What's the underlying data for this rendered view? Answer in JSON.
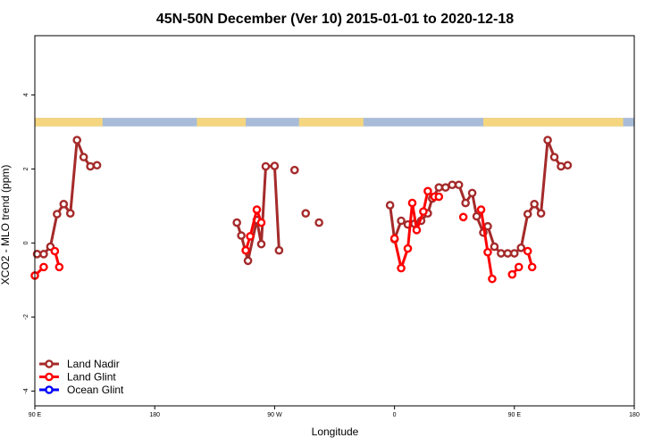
{
  "chart_data": {
    "type": "line",
    "title": "45N-50N December (Ver 10)   2015-01-01 to 2020-12-18",
    "xlabel": "Longitude",
    "ylabel": "XCO2 - MLO trend (ppm)",
    "xlim": [
      -90,
      180
    ],
    "ylim": [
      -4.4,
      5.6
    ],
    "x_ticks": [
      {
        "value": -90,
        "label": "90 E"
      },
      {
        "value": -36,
        "label": "180"
      },
      {
        "value": 18,
        "label": "90 W"
      },
      {
        "value": 72,
        "label": "0"
      },
      {
        "value": 126,
        "label": "90 E"
      },
      {
        "value": 180,
        "label": "180"
      }
    ],
    "y_ticks": [
      {
        "value": -4,
        "label": "-4"
      },
      {
        "value": -2,
        "label": "-2"
      },
      {
        "value": 0,
        "label": "0"
      },
      {
        "value": 2,
        "label": "2"
      },
      {
        "value": 4,
        "label": "4"
      }
    ],
    "grid": false,
    "legend_position": "bottom-left",
    "land_band": {
      "y_range": [
        3.15,
        3.38
      ],
      "land_color": "#f5d67f",
      "ocean_color": "#a8bcd8",
      "land_segments": [
        [
          -90,
          -59.5
        ],
        [
          -17,
          5
        ],
        [
          29,
          58
        ],
        [
          112,
          175
        ]
      ]
    },
    "series": [
      {
        "name": "Land Nadir",
        "color": "#a52a2a",
        "segments": [
          [
            [
              -89,
              -0.3
            ],
            [
              -86,
              -0.3
            ],
            [
              -83,
              -0.1
            ],
            [
              -80,
              0.78
            ],
            [
              -77,
              1.05
            ],
            [
              -74,
              0.8
            ],
            [
              -71,
              2.78
            ],
            [
              -68,
              2.32
            ],
            [
              -65,
              2.07
            ],
            [
              -62,
              2.1
            ]
          ],
          [
            [
              1,
              0.55
            ],
            [
              3,
              0.2
            ],
            [
              6,
              -0.48
            ],
            [
              10,
              0.62
            ],
            [
              12,
              -0.03
            ],
            [
              14,
              2.07
            ],
            [
              18,
              2.08
            ],
            [
              20,
              -0.2
            ]
          ],
          [
            [
              27,
              1.97
            ]
          ],
          [
            [
              32,
              0.8
            ]
          ],
          [
            [
              38,
              0.55
            ]
          ],
          [
            [
              70,
              1.02
            ],
            [
              72,
              0.1
            ],
            [
              75,
              0.6
            ],
            [
              78,
              0.5
            ],
            [
              81,
              0.52
            ],
            [
              84,
              0.6
            ],
            [
              87,
              0.8
            ],
            [
              89,
              1.2
            ],
            [
              92,
              1.5
            ],
            [
              95,
              1.5
            ],
            [
              98,
              1.57
            ],
            [
              101,
              1.57
            ],
            [
              104,
              1.08
            ],
            [
              107,
              1.35
            ],
            [
              109,
              0.72
            ],
            [
              112,
              0.28
            ],
            [
              114,
              0.45
            ],
            [
              117,
              -0.1
            ],
            [
              120,
              -0.28
            ],
            [
              123,
              -0.28
            ],
            [
              126,
              -0.28
            ],
            [
              129,
              -0.13
            ],
            [
              132,
              0.78
            ],
            [
              135,
              1.05
            ],
            [
              138,
              0.8
            ],
            [
              141,
              2.78
            ],
            [
              144,
              2.32
            ],
            [
              147,
              2.07
            ],
            [
              150,
              2.1
            ]
          ]
        ]
      },
      {
        "name": "Land Glint",
        "color": "#ff0000",
        "segments": [
          [
            [
              -90,
              -0.88
            ],
            [
              -86,
              -0.65
            ]
          ],
          [
            [
              -81,
              -0.22
            ],
            [
              -79,
              -0.65
            ]
          ],
          [
            [
              5,
              -0.2
            ],
            [
              7,
              0.18
            ],
            [
              10,
              0.9
            ],
            [
              12,
              0.55
            ]
          ],
          [
            [
              72,
              0.12
            ],
            [
              75,
              -0.68
            ],
            [
              78,
              -0.15
            ],
            [
              80,
              1.08
            ],
            [
              82,
              0.35
            ],
            [
              85,
              0.85
            ],
            [
              87,
              1.4
            ],
            [
              90,
              1.25
            ],
            [
              92,
              1.25
            ]
          ],
          [
            [
              103,
              0.7
            ]
          ],
          [
            [
              111,
              0.9
            ],
            [
              114,
              -0.25
            ],
            [
              116,
              -0.97
            ]
          ],
          [
            [
              125,
              -0.85
            ],
            [
              128,
              -0.65
            ]
          ],
          [
            [
              132,
              -0.22
            ],
            [
              134,
              -0.65
            ]
          ]
        ]
      },
      {
        "name": "Ocean Glint",
        "color": "#0000ff",
        "segments": []
      }
    ]
  }
}
